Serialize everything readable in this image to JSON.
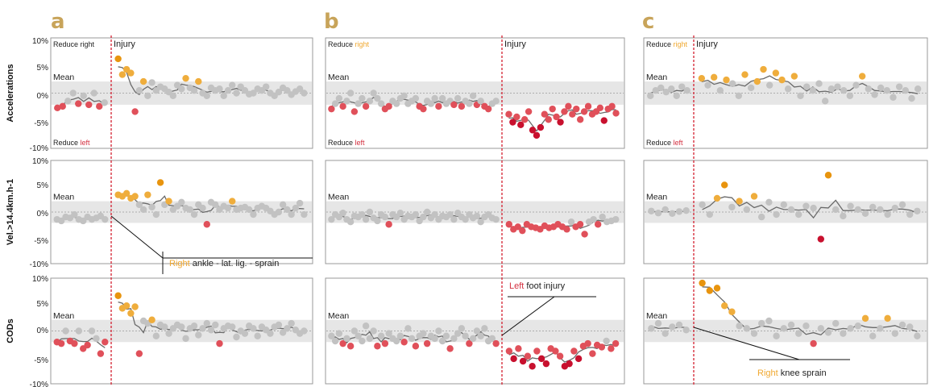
{
  "panels": [
    {
      "letter": "a"
    },
    {
      "letter": "b"
    },
    {
      "letter": "c"
    }
  ],
  "row_labels": [
    "Accelerations",
    "Vel.>14.4km.h-1",
    "CODs"
  ],
  "y_ticks": [
    "10%",
    "5%",
    "0%",
    "-5%",
    "-10%"
  ],
  "labels": {
    "mean": "Mean",
    "injury": "Injury",
    "reduce_prefix": "Reduce",
    "right": "right",
    "left": "left"
  },
  "annotations": {
    "a": {
      "side": "Right",
      "text": "ankle - lat. lig. - sprain"
    },
    "b": {
      "side": "Left",
      "text": "foot injury"
    },
    "c": {
      "side": "Right",
      "text": "knee sprain"
    }
  },
  "colors": {
    "gray_point": "#c2c2c2",
    "red_point": "#e0505a",
    "dark_red": "#c8102e",
    "orange_point": "#efad3c",
    "dark_orange": "#e8940e",
    "gray_line": "#6a6a6a",
    "band": "#e6e6e6",
    "injury_line": "#d42030",
    "panel_letter": "#c8a45a",
    "right_word": "#f0a830",
    "left_word": "#d43040"
  },
  "chart_data": [
    {
      "type": "scatter",
      "panel": "a",
      "ylim": [
        -10,
        10
      ],
      "series": [
        {
          "metric": "Accelerations",
          "pre": [
            -2.8,
            -2.5,
            -1.5,
            0,
            -2,
            -0.5,
            -2.2,
            0,
            -2.5,
            -1.8
          ],
          "post": [
            6.5,
            3.5,
            4.5,
            3.8,
            -3.5,
            0.5,
            2.2,
            -0.5,
            2,
            0.5,
            1.2,
            0.8,
            0.2,
            -0.5,
            1.5,
            0.8,
            2.8,
            1,
            0.5,
            2.2,
            0,
            -0.5,
            1,
            0.5,
            0.8,
            -0.5,
            0.5,
            1.5,
            0,
            1.2,
            0.5,
            -0.2,
            0,
            0.8,
            0.5,
            1.2,
            0,
            -0.5,
            0.2,
            1,
            0.5,
            -0.3,
            0.3,
            0.8,
            0
          ]
        },
        {
          "metric": "Vel.>14.4km.h-1",
          "pre": [
            -1.5,
            -1.8,
            -1,
            -1.2,
            -0.5,
            -1.5,
            -1.8,
            -1,
            -1.5,
            -1.2,
            -0.8,
            -1.5
          ],
          "post": [
            3.5,
            3.2,
            3.8,
            2.8,
            3.2,
            1.5,
            0.5,
            3.5,
            1,
            -0.5,
            6,
            1.5,
            2.2,
            0.5,
            1.2,
            2,
            0.8,
            0.5,
            -0.5,
            1.5,
            0.8,
            -2.5,
            2,
            1.5,
            0.5,
            1.2,
            0.8,
            2.2,
            0.5,
            0.8,
            1,
            0.5,
            -0.5,
            0.8,
            1.2,
            0.8,
            0.2,
            -0.5,
            0,
            1.5,
            0.5,
            -0.5,
            0.8,
            1.8,
            -0.5
          ]
        },
        {
          "metric": "CODs",
          "pre": [
            -2.2,
            -2.5,
            0,
            -2,
            -2.5,
            0,
            -3.5,
            -2.8,
            0,
            -1.5,
            -4.5,
            -2.2
          ],
          "post": [
            7,
            4.5,
            5,
            3.5,
            4.8,
            -4.5,
            2,
            1.5,
            2.2,
            -1,
            1.2,
            0.8,
            -0.5,
            0.5,
            1.2,
            0.8,
            -1.5,
            0.5,
            1,
            -0.8,
            0.5,
            1.5,
            0.2,
            1.2,
            -2.5,
            0.5,
            1,
            0.8,
            -1.2,
            0,
            -0.5,
            1,
            0.5,
            -1,
            0.8,
            0.2,
            -0.5,
            0.8,
            1.2,
            -0.3,
            0.5,
            1.5,
            0.2,
            -0.5,
            0
          ]
        }
      ]
    },
    {
      "type": "scatter",
      "panel": "b",
      "ylim": [
        -10,
        10
      ],
      "series": [
        {
          "metric": "Accelerations",
          "pre": [
            -3,
            -2,
            -1,
            -2.5,
            -1.5,
            0,
            -3.5,
            -2,
            -1,
            -2.5,
            -1.5,
            0,
            -1,
            -2,
            -3,
            -2.5,
            -1.5,
            -2,
            -1,
            -0.5,
            -2,
            -1.5,
            -1,
            -2.5,
            -3,
            -1.5,
            -2,
            -1,
            -2.5,
            -1,
            -2,
            -1.5,
            -2.2,
            -1,
            -2.5,
            -1.5,
            -2,
            -0.5,
            -2.2,
            -1.5,
            -2.5,
            -3,
            -2,
            -1.5
          ],
          "post": [
            -4,
            -5.5,
            -4.5,
            -6,
            -5,
            -3.5,
            -7,
            -8,
            -6.5,
            -4,
            -5,
            -3,
            -4.5,
            -5.5,
            -3.5,
            -2.5,
            -4,
            -3,
            -5,
            -3.5,
            -2.5,
            -4,
            -3.5,
            -2.8,
            -5.2,
            -3,
            -2.5,
            -3.8
          ]
        },
        {
          "metric": "Vel.>14.4km.h-1",
          "pre": [
            -1.5,
            -0.5,
            -1,
            -0.2,
            -1.5,
            -2,
            -0.8,
            -1,
            -0.5,
            -1.5,
            0,
            -1.2,
            -1.8,
            -0.5,
            -1,
            -2.5,
            -0.5,
            -1,
            -0.2,
            -1.5,
            -0.8,
            -1,
            -0.5,
            -1.8,
            -1,
            0,
            -1.2,
            -0.5,
            -1.5,
            -0.8,
            -1,
            -0.5,
            -1.5,
            -0.2,
            -1,
            -1.5,
            -0.5,
            -1.2,
            -0.8,
            -2,
            -1,
            -0.5,
            -1.2,
            -1.5
          ],
          "post": [
            -2.5,
            -3.5,
            -3,
            -3.8,
            -2.5,
            -3,
            -3.2,
            -3.5,
            -2.8,
            -3.2,
            -3,
            -2.5,
            -3,
            -3.5,
            -2,
            -3,
            -2.5,
            -4.5,
            -2,
            -1.5,
            -2.5,
            -1,
            -2,
            -1.8,
            -1.5
          ]
        },
        {
          "metric": "CODs",
          "pre": [
            -1,
            -2,
            -0.5,
            -2.5,
            -1.5,
            -3,
            0,
            -1,
            -2,
            1,
            -1.5,
            0,
            -3,
            -1,
            -2.5,
            -0.5,
            -1.5,
            -2,
            -1,
            -2.2,
            0.5,
            -1.5,
            -3,
            -1,
            -0.5,
            -2.5,
            -1,
            -1.5,
            0,
            -2,
            -1,
            -3.5,
            -1.5,
            -0.5,
            0.5,
            -1,
            -2.5,
            -1.5,
            0,
            -1,
            0.5,
            -2,
            -1.5,
            -2.5
          ],
          "post": [
            -4,
            -5.5,
            -3.5,
            -6,
            -5,
            -7,
            -4,
            -5.5,
            -6.5,
            -3.5,
            -4,
            -5,
            -7,
            -6.5,
            -4,
            -5.5,
            -3,
            -2.5,
            -4.5,
            -2.8,
            -3.2,
            -2,
            -3.5,
            -2.5
          ]
        }
      ]
    },
    {
      "type": "scatter",
      "panel": "c",
      "ylim": [
        -10,
        10
      ],
      "series": [
        {
          "metric": "Accelerations",
          "pre": [
            -0.5,
            0.5,
            1,
            0.2,
            0.8,
            -0.5,
            1.2,
            0.5
          ],
          "post": [
            2.8,
            1.5,
            3,
            0.5,
            2.5,
            1.8,
            -0.5,
            3.5,
            1,
            2.2,
            4.5,
            1.5,
            3.8,
            2.5,
            0.8,
            3.2,
            -0.5,
            1.2,
            0.5,
            1.8,
            -1.5,
            0.8,
            1.2,
            0.5,
            -0.5,
            1.5,
            3.2,
            0.8,
            -0.3,
            1,
            0.5,
            -0.8,
            1.2,
            0.5,
            -1,
            0.8
          ]
        },
        {
          "metric": "Vel.>14.4km.h-1",
          "pre": [
            0.2,
            -0.2,
            0.5,
            -0.3,
            0.1,
            0.3
          ],
          "post": [
            1.5,
            -0.5,
            2.8,
            5.5,
            1,
            2.2,
            0.5,
            3.2,
            -1,
            2,
            -0.5,
            1.5,
            0.5,
            -0.5,
            1.2,
            0.8,
            -5.5,
            7.5,
            0.5,
            -0.8,
            1.2,
            0.5,
            -0.3,
            1,
            0.5,
            -0.5,
            0.8,
            1.5,
            -0.5,
            0.2
          ]
        },
        {
          "metric": "CODs",
          "pre": [
            0.5,
            1.5,
            -0.5,
            0.8,
            1.2,
            0.2
          ],
          "post": [
            9.5,
            8,
            8.5,
            5,
            3.8,
            1,
            0.5,
            -0.5,
            1.5,
            2,
            -1,
            0.5,
            1.2,
            -0.5,
            1,
            -2.5,
            0.5,
            -0.3,
            1.5,
            -0.5,
            0.5,
            1,
            2.5,
            -1,
            0.5,
            2.5,
            -0.5,
            1.2,
            0.8,
            -1
          ]
        }
      ]
    }
  ]
}
